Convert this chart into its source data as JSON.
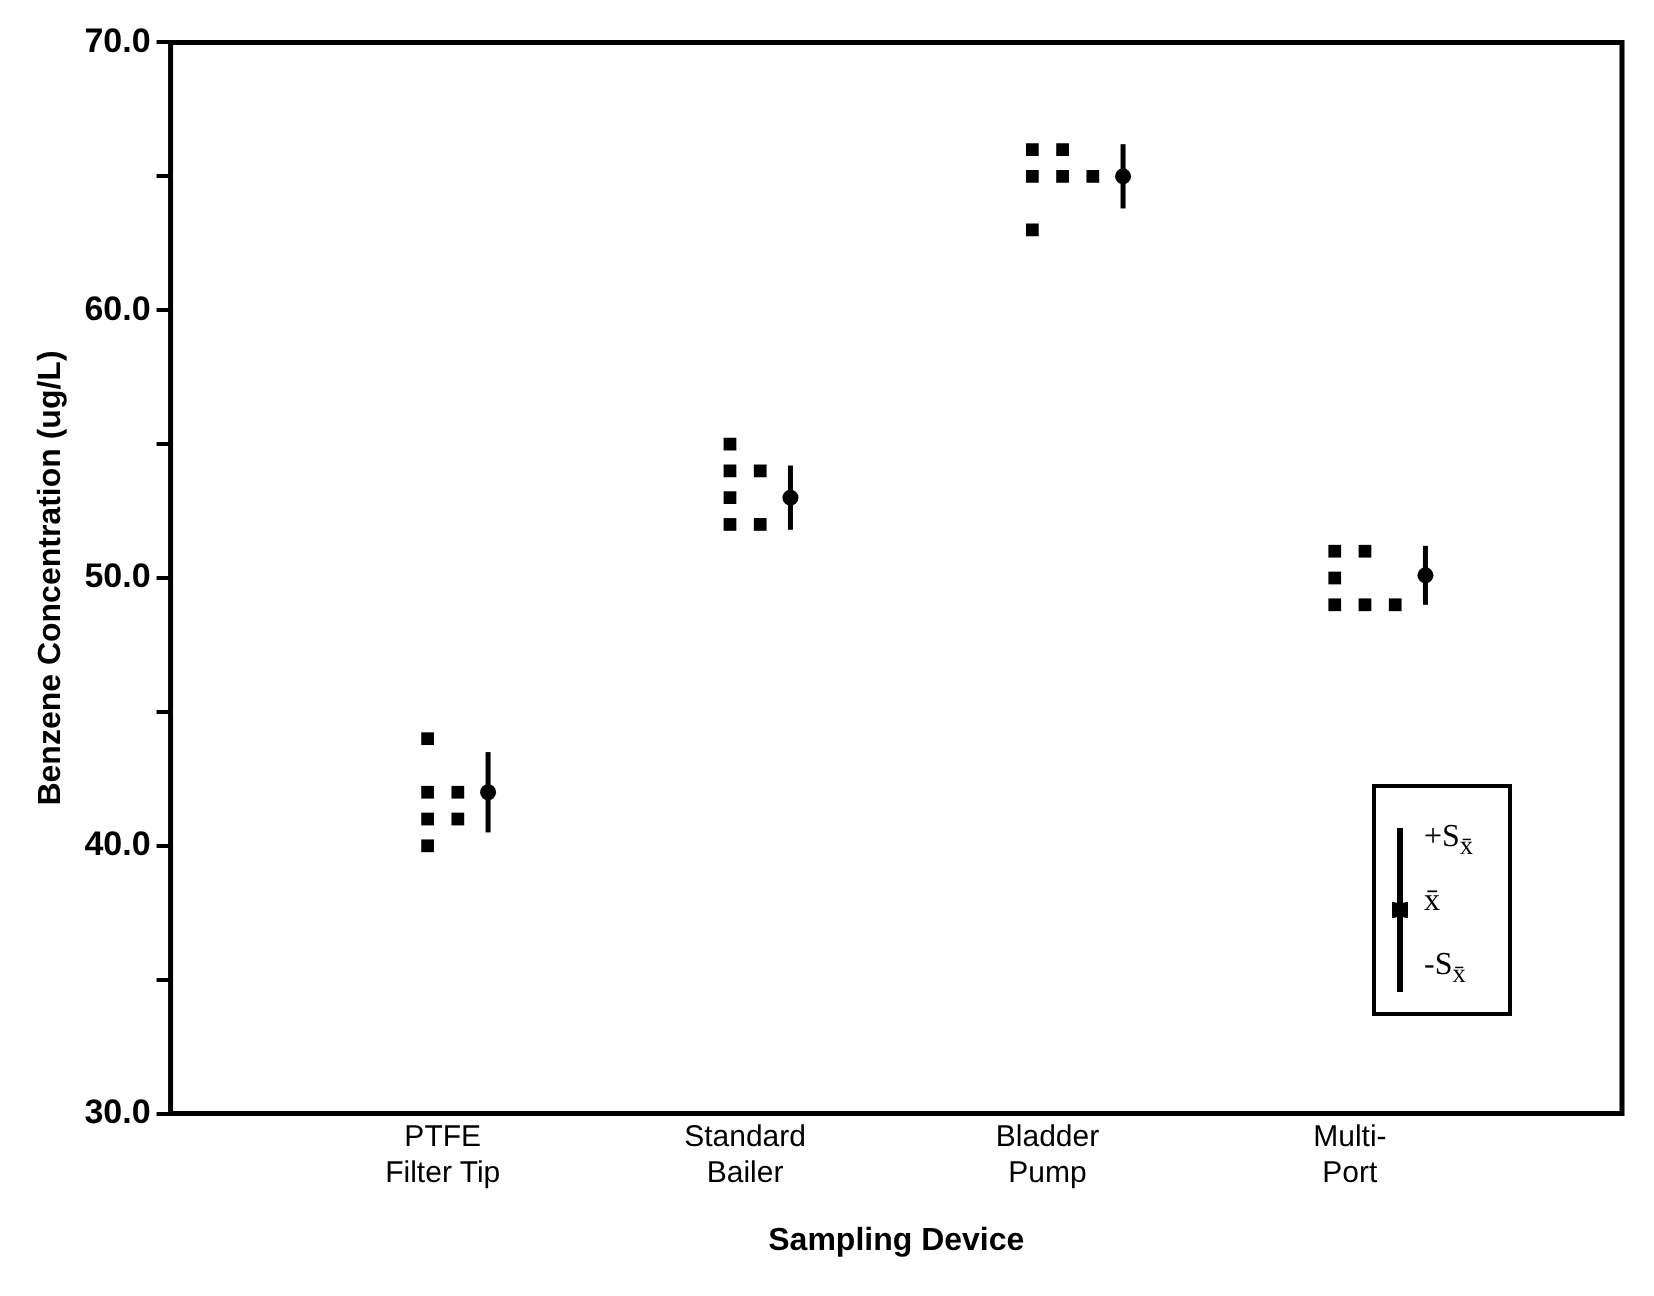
{
  "chart_data": {
    "type": "scatter",
    "xlabel": "Sampling Device",
    "ylabel": "Benzene Concentration (ug/L)",
    "categories": [
      "PTFE\nFilter Tip",
      "Standard\nBailer",
      "Bladder\nPump",
      "Multi-\nPort"
    ],
    "ylim": [
      30,
      70
    ],
    "yticks": [
      {
        "value": 30,
        "label": "30.0"
      },
      {
        "value": 35,
        "label": null
      },
      {
        "value": 40,
        "label": "40.0"
      },
      {
        "value": 45,
        "label": null
      },
      {
        "value": 50,
        "label": "50.0"
      },
      {
        "value": 55,
        "label": null
      },
      {
        "value": 60,
        "label": "60.0"
      },
      {
        "value": 65,
        "label": null
      },
      {
        "value": 70,
        "label": "70.0"
      }
    ],
    "grid": false,
    "legend": false,
    "marker": "square",
    "series": [
      {
        "color": "#000000",
        "x": [
          "PTFE\nFilter Tip",
          "PTFE\nFilter Tip",
          "PTFE\nFilter Tip",
          "PTFE\nFilter Tip",
          "PTFE\nFilter Tip",
          "PTFE\nFilter Tip",
          "Standard\nBailer",
          "Standard\nBailer",
          "Standard\nBailer",
          "Standard\nBailer",
          "Standard\nBailer",
          "Standard\nBailer",
          "Bladder\nPump",
          "Bladder\nPump",
          "Bladder\nPump",
          "Bladder\nPump",
          "Bladder\nPump",
          "Bladder\nPump",
          "Multi-\nPort",
          "Multi-\nPort",
          "Multi-\nPort",
          "Multi-\nPort",
          "Multi-\nPort",
          "Multi-\nPort"
        ],
        "values": [
          44,
          42,
          41,
          40,
          42,
          41,
          55,
          54,
          53,
          52,
          54,
          52,
          66,
          65,
          63,
          66,
          65,
          65,
          51,
          50,
          49,
          51,
          49,
          49
        ]
      },
      {
        "marker": "circle",
        "color": "#000000",
        "values": [
          42,
          53,
          65,
          50.1
        ],
        "errors": [
          1.5,
          1.2,
          1.2,
          1.1
        ]
      }
    ],
    "annotations": [
      "+S$_{x̄}$",
      "x̄",
      "-S$_{x̄}$"
    ]
  }
}
